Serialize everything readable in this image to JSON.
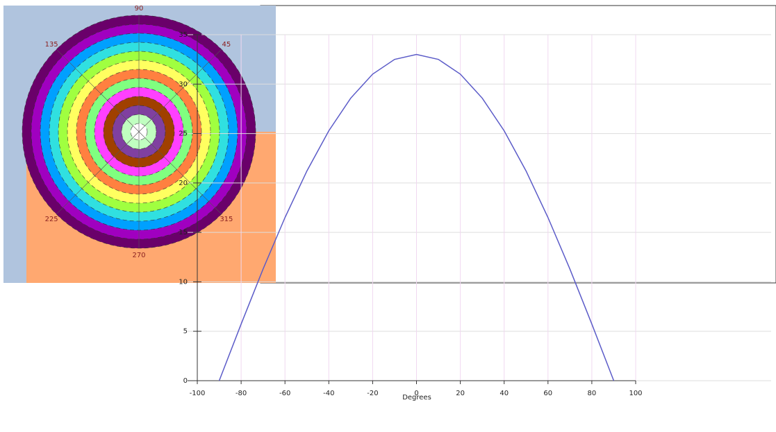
{
  "chart_data": [
    {
      "type": "polar",
      "thetaticks": [
        90,
        135,
        45,
        225,
        315,
        270
      ]
    },
    {
      "type": "line",
      "xlabel": "Degrees",
      "x": [
        -90,
        -80,
        -70,
        -60,
        -50,
        -40,
        -30,
        -20,
        -10,
        0,
        10,
        20,
        30,
        40,
        50,
        60,
        70,
        80,
        90
      ],
      "series": [
        {
          "color": "#5b5bc8",
          "values": [
            0,
            5.73,
            11.29,
            16.5,
            21.21,
            25.28,
            28.58,
            31.01,
            32.5,
            33,
            32.5,
            31.01,
            28.58,
            25.28,
            21.21,
            16.5,
            11.29,
            5.73,
            0
          ]
        }
      ],
      "xlim": [
        -100,
        100
      ],
      "xticks": [
        -100,
        -80,
        -60,
        -40,
        -20,
        0,
        20,
        40,
        60,
        80,
        100
      ],
      "ylim": [
        0,
        35
      ],
      "yticks": [
        0,
        5,
        10,
        15,
        20,
        25,
        30,
        35
      ],
      "grid": true
    }
  ]
}
